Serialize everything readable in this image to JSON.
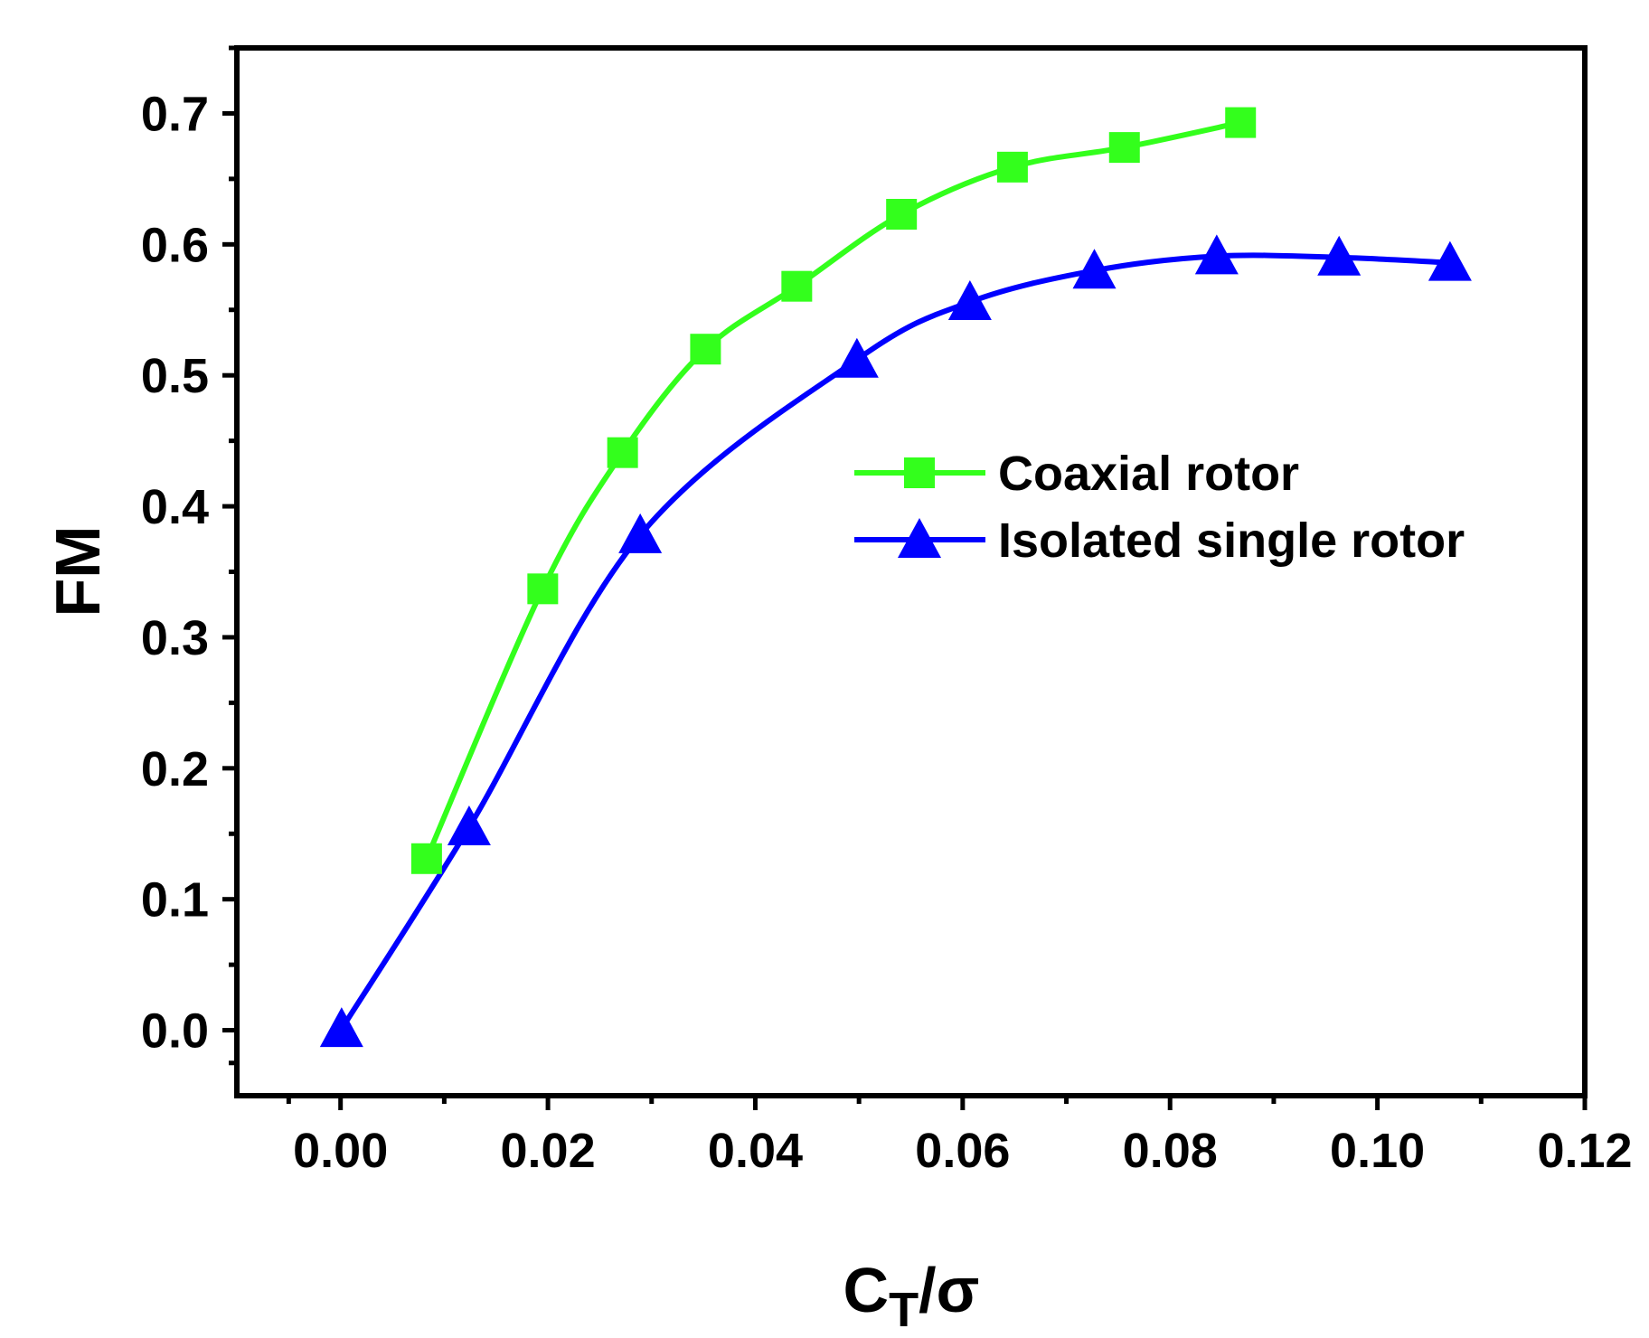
{
  "chart_data": {
    "type": "line",
    "title": "",
    "xlabel": {
      "main": "C",
      "sub": "T",
      "tail": "/σ"
    },
    "ylabel": "FM",
    "xlim": [
      -0.01,
      0.12
    ],
    "ylim": [
      -0.05,
      0.75
    ],
    "xticks": [
      0.0,
      0.02,
      0.04,
      0.06,
      0.08,
      0.1,
      0.12
    ],
    "xtick_labels": [
      "0.00",
      "0.02",
      "0.04",
      "0.06",
      "0.08",
      "0.10",
      "0.12"
    ],
    "yticks": [
      0.0,
      0.1,
      0.2,
      0.3,
      0.4,
      0.5,
      0.6,
      0.7
    ],
    "ytick_labels": [
      "0.0",
      "0.1",
      "0.2",
      "0.3",
      "0.4",
      "0.5",
      "0.6",
      "0.7"
    ],
    "grid": false,
    "legend_position": "center-right",
    "series": [
      {
        "name": "Coaxial rotor",
        "color": "#33ff1c",
        "marker": "square",
        "x": [
          0.0083,
          0.0195,
          0.0272,
          0.0352,
          0.044,
          0.0541,
          0.0648,
          0.0756,
          0.0868
        ],
        "y": [
          0.131,
          0.337,
          0.441,
          0.52,
          0.568,
          0.623,
          0.659,
          0.674,
          0.693
        ]
      },
      {
        "name": "Isolated single rotor",
        "color": "#0000ff",
        "marker": "triangle",
        "x": [
          0.0001,
          0.0124,
          0.0289,
          0.0498,
          0.0607,
          0.0727,
          0.0845,
          0.0963,
          0.107
        ],
        "y": [
          0.001,
          0.155,
          0.378,
          0.512,
          0.556,
          0.58,
          0.591,
          0.59,
          0.586
        ]
      }
    ]
  }
}
